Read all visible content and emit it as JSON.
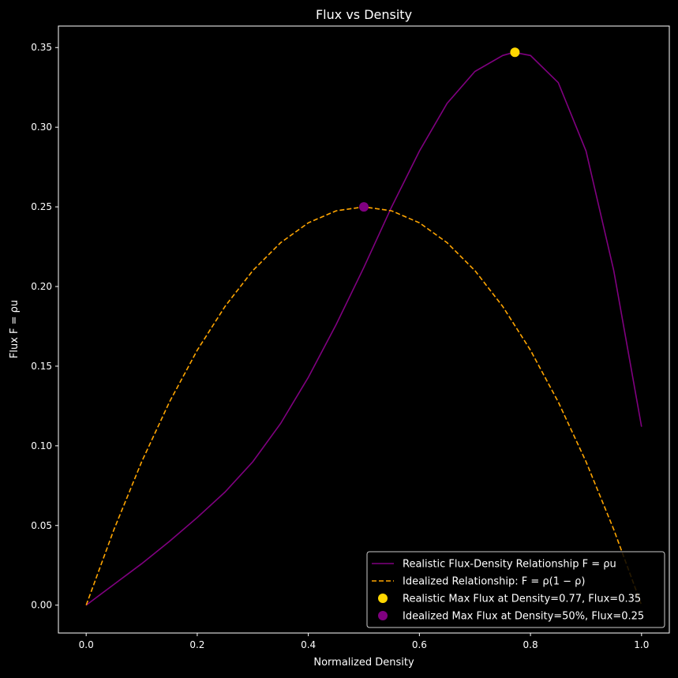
{
  "chart_data": {
    "type": "line",
    "title": "Flux vs Density",
    "xlabel": "Normalized Density",
    "ylabel": "Flux F = ρu",
    "xlim": [
      -0.05,
      1.05
    ],
    "ylim": [
      -0.0175,
      0.3635
    ],
    "grid": false,
    "legend_position": "lower-right",
    "background": "#000000",
    "x_ticks": [
      {
        "value": 0.0,
        "label": "0.0"
      },
      {
        "value": 0.2,
        "label": "0.2"
      },
      {
        "value": 0.4,
        "label": "0.4"
      },
      {
        "value": 0.6,
        "label": "0.6"
      },
      {
        "value": 0.8,
        "label": "0.8"
      },
      {
        "value": 1.0,
        "label": "1.0"
      }
    ],
    "y_ticks": [
      {
        "value": 0.0,
        "label": "0.00"
      },
      {
        "value": 0.05,
        "label": "0.05"
      },
      {
        "value": 0.1,
        "label": "0.10"
      },
      {
        "value": 0.15,
        "label": "0.15"
      },
      {
        "value": 0.2,
        "label": "0.20"
      },
      {
        "value": 0.25,
        "label": "0.25"
      },
      {
        "value": 0.3,
        "label": "0.30"
      },
      {
        "value": 0.35,
        "label": "0.35"
      }
    ],
    "series": [
      {
        "name": "Realistic Flux-Density Relationship F = ρu",
        "color": "#800080",
        "style": "solid",
        "x": [
          0.0,
          0.05,
          0.1,
          0.15,
          0.2,
          0.25,
          0.3,
          0.35,
          0.4,
          0.45,
          0.5,
          0.55,
          0.6,
          0.65,
          0.7,
          0.75,
          0.77,
          0.8,
          0.85,
          0.9,
          0.95,
          1.0
        ],
        "y": [
          0.0,
          0.013,
          0.026,
          0.04,
          0.055,
          0.071,
          0.09,
          0.114,
          0.143,
          0.176,
          0.212,
          0.25,
          0.285,
          0.315,
          0.335,
          0.345,
          0.347,
          0.345,
          0.328,
          0.285,
          0.21,
          0.112
        ]
      },
      {
        "name": "Idealized Relationship: F = ρ(1 − ρ)",
        "color": "#FFA500",
        "style": "dashed",
        "x": [
          0.0,
          0.05,
          0.1,
          0.15,
          0.2,
          0.25,
          0.3,
          0.35,
          0.4,
          0.45,
          0.5,
          0.55,
          0.6,
          0.65,
          0.7,
          0.75,
          0.8,
          0.85,
          0.9,
          0.95,
          1.0
        ],
        "y": [
          0.0,
          0.0475,
          0.09,
          0.1275,
          0.16,
          0.1875,
          0.21,
          0.2275,
          0.24,
          0.2475,
          0.25,
          0.2475,
          0.24,
          0.2275,
          0.21,
          0.1875,
          0.16,
          0.1275,
          0.09,
          0.0475,
          0.0
        ]
      }
    ],
    "points": [
      {
        "name": "Realistic Max Flux at Density=0.77, Flux=0.35",
        "x": 0.772,
        "y": 0.347,
        "color": "#FFD700"
      },
      {
        "name": "Idealized Max Flux at Density=50%, Flux=0.25",
        "x": 0.5,
        "y": 0.25,
        "color": "#800080"
      }
    ]
  }
}
